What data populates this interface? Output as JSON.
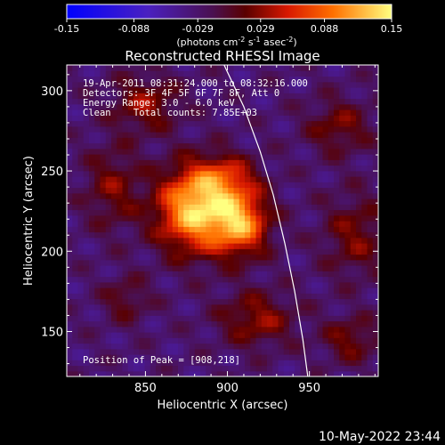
{
  "chart_data": {
    "type": "heatmap",
    "title": "Reconstructed RHESSI Image",
    "xlabel": "Heliocentric X (arcsec)",
    "ylabel": "Heliocentric Y (arcsec)",
    "xlim": [
      802,
      992
    ],
    "ylim": [
      122,
      316
    ],
    "xticks": [
      850,
      900,
      950
    ],
    "yticks": [
      150,
      200,
      250,
      300
    ],
    "colorbar": {
      "min": -0.15,
      "max": 0.15,
      "ticks": [
        "-0.15",
        "-0.088",
        "-0.029",
        "0.029",
        "0.088",
        "0.15"
      ],
      "unit_parts": [
        "(photons cm",
        "-2",
        " s",
        "-1",
        " asec",
        "-2",
        ")"
      ]
    },
    "annotations": [
      "19-Apr-2011 08:31:24.000 to 08:32:16.000",
      "Detectors: 3F 4F 5F 6F 7F 8F, Att 0",
      "Energy Range: 3.0 - 6.0 keV",
      "Clean    Total counts: 7.85E+03"
    ],
    "peak_label": "Position of Peak = [908,218]",
    "peak": [
      908,
      218
    ],
    "limb_curve": [
      [
        898,
        316
      ],
      [
        910,
        290
      ],
      [
        920,
        262
      ],
      [
        928,
        235
      ],
      [
        935,
        205
      ],
      [
        941,
        175
      ],
      [
        946,
        145
      ],
      [
        949,
        122
      ]
    ],
    "sources": [
      {
        "x": 880,
        "y": 226,
        "sigma_x": 16,
        "sigma_y": 18,
        "amp": 0.16
      },
      {
        "x": 908,
        "y": 218,
        "sigma_x": 12,
        "sigma_y": 14,
        "amp": 0.13
      },
      {
        "x": 898,
        "y": 246,
        "sigma_x": 14,
        "sigma_y": 10,
        "amp": 0.07
      },
      {
        "x": 830,
        "y": 240,
        "sigma_x": 12,
        "sigma_y": 18,
        "amp": 0.05
      },
      {
        "x": 850,
        "y": 292,
        "sigma_x": 14,
        "sigma_y": 12,
        "amp": 0.06
      },
      {
        "x": 968,
        "y": 278,
        "sigma_x": 14,
        "sigma_y": 12,
        "amp": 0.05
      },
      {
        "x": 978,
        "y": 210,
        "sigma_x": 14,
        "sigma_y": 18,
        "amp": 0.05
      },
      {
        "x": 918,
        "y": 158,
        "sigma_x": 16,
        "sigma_y": 12,
        "amp": 0.06
      },
      {
        "x": 975,
        "y": 145,
        "sigma_x": 12,
        "sigma_y": 10,
        "amp": 0.05
      },
      {
        "x": 838,
        "y": 170,
        "sigma_x": 10,
        "sigma_y": 10,
        "amp": 0.04
      }
    ]
  },
  "footer": {
    "timestamp": "10-May-2022 23:44"
  }
}
